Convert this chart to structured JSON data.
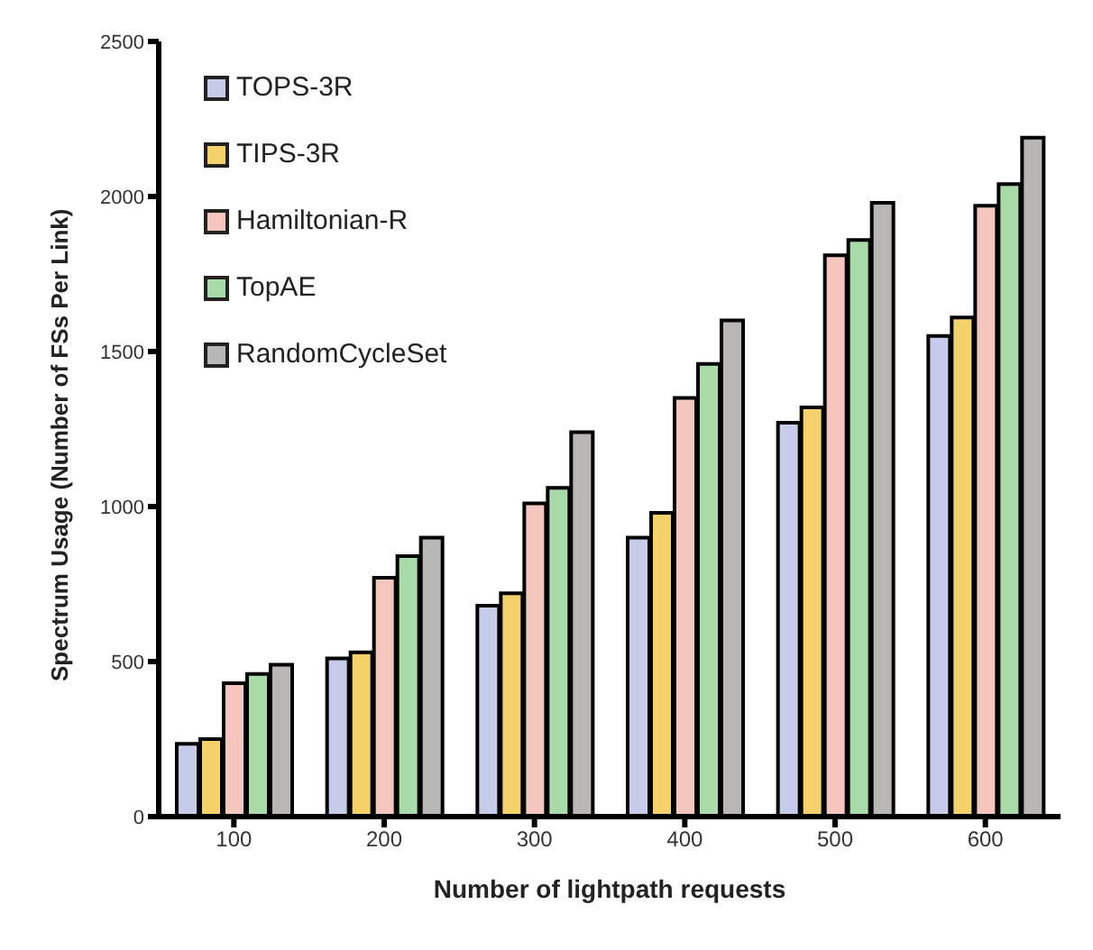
{
  "chart_data": {
    "type": "bar",
    "xlabel": "Number of lightpath requests",
    "ylabel": "Spectrum Usage (Number of FSs  Per Link)",
    "categories": [
      "100",
      "200",
      "300",
      "400",
      "500",
      "600"
    ],
    "ylim": [
      0,
      2500
    ],
    "yticks": [
      0,
      500,
      1000,
      1500,
      2000,
      2500
    ],
    "grid": false,
    "legend": "top left",
    "series": [
      {
        "name": "TOPS-3R",
        "color": "#c5cbe8",
        "values": [
          235,
          510,
          680,
          900,
          1270,
          1550
        ]
      },
      {
        "name": "TIPS-3R",
        "color": "#f5d16a",
        "values": [
          250,
          530,
          720,
          980,
          1320,
          1610
        ]
      },
      {
        "name": "Hamiltonian-R",
        "color": "#f4c6be",
        "values": [
          430,
          770,
          1010,
          1350,
          1810,
          1970
        ]
      },
      {
        "name": "TopAE",
        "color": "#a8dba8",
        "values": [
          460,
          840,
          1060,
          1460,
          1860,
          2040
        ]
      },
      {
        "name": "RandomCycleSet",
        "color": "#b9b6b6",
        "values": [
          490,
          900,
          1240,
          1600,
          1980,
          2190
        ]
      }
    ]
  }
}
